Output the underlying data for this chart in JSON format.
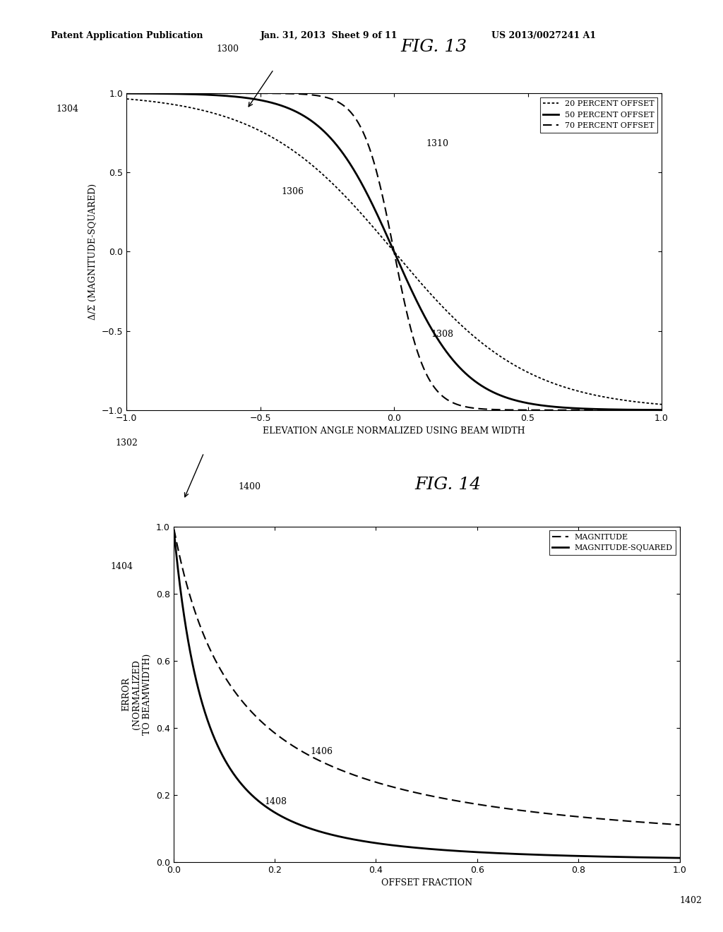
{
  "header_left": "Patent Application Publication",
  "header_mid": "Jan. 31, 2013  Sheet 9 of 11",
  "header_right": "US 2013/0027241 A1",
  "fig13": {
    "title": "FIG. 13",
    "xlabel": "ELEVATION ANGLE NORMALIZED USING BEAM WIDTH",
    "ylabel": "Δ/Σ (MAGNITUDE-SQUARED)",
    "xlim": [
      -1.0,
      1.0
    ],
    "ylim": [
      -1.0,
      1.0
    ],
    "xticks": [
      -1.0,
      -0.5,
      0,
      0.5,
      1.0
    ],
    "yticks": [
      -1.0,
      -0.5,
      0,
      0.5,
      1.0
    ],
    "legend_entries": [
      "20 PERCENT OFFSET",
      "50 PERCENT OFFSET",
      "70 PERCENT OFFSET"
    ],
    "label_1300": "1300",
    "label_1302": "1302",
    "label_1304": "1304",
    "label_1306": "1306",
    "label_1308": "1308",
    "label_1310": "1310"
  },
  "fig14": {
    "title": "FIG. 14",
    "xlabel": "OFFSET FRACTION",
    "ylabel": "ERROR\n(NORMALIZED\nTO BEAMWIDTH)",
    "xlim": [
      0,
      1.0
    ],
    "ylim": [
      0,
      1.0
    ],
    "xticks": [
      0,
      0.2,
      0.4,
      0.6,
      0.8,
      1.0
    ],
    "yticks": [
      0,
      0.2,
      0.4,
      0.6,
      0.8,
      1.0
    ],
    "legend_entries": [
      "MAGNITUDE",
      "MAGNITUDE-SQUARED"
    ],
    "label_1400": "1400",
    "label_1402": "1402",
    "label_1404": "1404",
    "label_1406": "1406",
    "label_1408": "1408"
  },
  "background_color": "#ffffff",
  "font_size_header": 9,
  "font_size_title": 18,
  "font_size_axis_label": 9,
  "font_size_tick": 9,
  "font_size_legend": 8,
  "font_size_annot": 9
}
